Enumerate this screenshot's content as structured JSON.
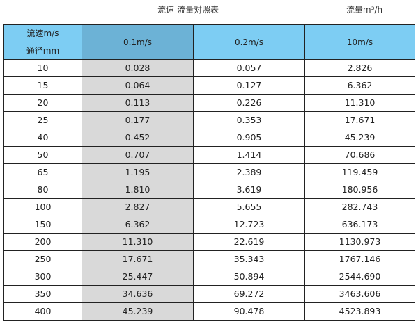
{
  "title": "流速-流量对照表",
  "unit_label": "流量m³/h",
  "colors": {
    "header": "#7dcdf3",
    "header_highlight": "#6cb2d6",
    "highlight_column": "#d9d9d9"
  },
  "header": {
    "velocity_label": "流速m/s",
    "diameter_label": "通径mm",
    "columns": [
      "0.1m/s",
      "0.2m/s",
      "10m/s"
    ]
  },
  "rows": [
    [
      "10",
      "0.028",
      "0.057",
      "2.826"
    ],
    [
      "15",
      "0.064",
      "0.127",
      "6.362"
    ],
    [
      "20",
      "0.113",
      "0.226",
      "11.310"
    ],
    [
      "25",
      "0.177",
      "0.353",
      "17.671"
    ],
    [
      "40",
      "0.452",
      "0.905",
      "45.239"
    ],
    [
      "50",
      "0.707",
      "1.414",
      "70.686"
    ],
    [
      "65",
      "1.195",
      "2.389",
      "119.459"
    ],
    [
      "80",
      "1.810",
      "3.619",
      "180.956"
    ],
    [
      "100",
      "2.827",
      "5.655",
      "282.743"
    ],
    [
      "150",
      "6.362",
      "12.723",
      "636.173"
    ],
    [
      "200",
      "11.310",
      "22.619",
      "1130.973"
    ],
    [
      "250",
      "17.671",
      "35.343",
      "1767.146"
    ],
    [
      "300",
      "25.447",
      "50.894",
      "2544.690"
    ],
    [
      "350",
      "34.636",
      "69.272",
      "3463.606"
    ],
    [
      "400",
      "45.239",
      "90.478",
      "4523.893"
    ]
  ]
}
